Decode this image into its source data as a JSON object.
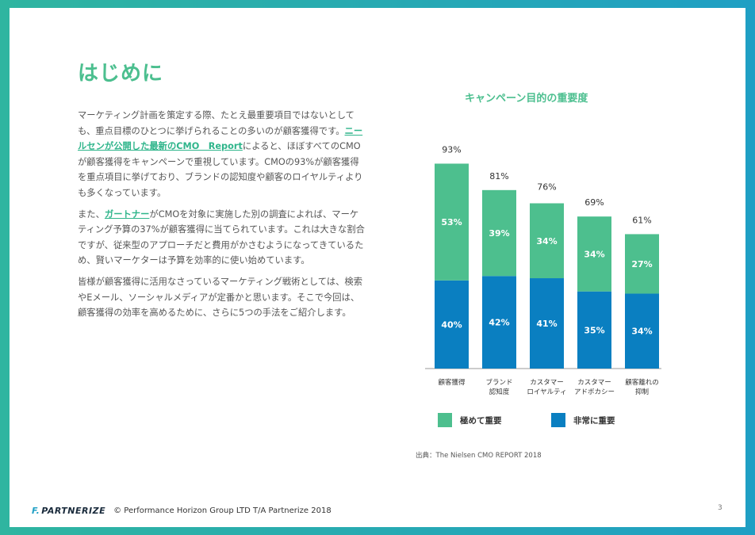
{
  "page": {
    "title": "はじめに",
    "paragraphs": [
      {
        "pre": "マーケティング計画を策定する際、たとえ最重要項目ではないとしても、重点目標のひとつに挙げられることの多いのが顧客獲得です。",
        "link": "ニールセンが公開した最新のCMO　Report",
        "post": "によると、ほぼすべてのCMOが顧客獲得をキャンペーンで重視しています。CMOの93%が顧客獲得を重点項目に挙げており、ブランドの認知度や顧客のロイヤルティよりも多くなっています。"
      },
      {
        "pre": "また、",
        "link": "ガートナー",
        "post": "がCMOを対象に実施した別の調査によれば、マーケティング予算の37%が顧客獲得に当てられています。これは大きな割合ですが、従来型のアプローチだと費用がかさむようになってきているため、賢いマーケターは予算を効率的に使い始めています。"
      },
      {
        "pre": "皆様が顧客獲得に活用なさっているマーケティング戦術としては、検索やEメール、ソーシャルメディアが定番かと思います。そこで今回は、顧客獲得の効率を高めるために、さらに5つの手法をご紹介します。",
        "link": "",
        "post": ""
      }
    ],
    "source": "出典：The Nielsen CMO REPORT 2018",
    "footer_logo": "PARTNERIZE",
    "footer_logo_mark": "F.",
    "footer_text": "© Performance Horizon Group LTD T/A Partnerize 2018",
    "page_number": "3"
  },
  "chart_data": {
    "type": "bar",
    "stacked": true,
    "title": "キャンペーン目的の重要度",
    "categories": [
      [
        "顧客獲得"
      ],
      [
        "ブランド",
        "認知度"
      ],
      [
        "カスタマー",
        "ロイヤルティ"
      ],
      [
        "カスタマー",
        "アドボカシー"
      ],
      [
        "顧客離れの",
        "抑制"
      ]
    ],
    "totals": [
      "93%",
      "81%",
      "76%",
      "69%",
      "61%"
    ],
    "total_values": [
      93,
      81,
      76,
      69,
      61
    ],
    "series": [
      {
        "name": "非常に重要",
        "values": [
          40,
          42,
          41,
          35,
          34
        ],
        "labels": [
          "40%",
          "42%",
          "41%",
          "35%",
          "34%"
        ],
        "color": "#0a7fc1"
      },
      {
        "name": "極めて重要",
        "values": [
          53,
          39,
          34,
          34,
          27
        ],
        "labels": [
          "53%",
          "39%",
          "34%",
          "34%",
          "27%"
        ],
        "color": "#4dbf8e"
      }
    ],
    "legend": {
      "position": "bottom"
    },
    "ylim": [
      0,
      100
    ],
    "grid": false
  },
  "colors": {
    "accent": "#4cbf8f",
    "link": "#2fb58b",
    "dark_blue": "#0a7fc1",
    "green": "#4dbf8e"
  }
}
